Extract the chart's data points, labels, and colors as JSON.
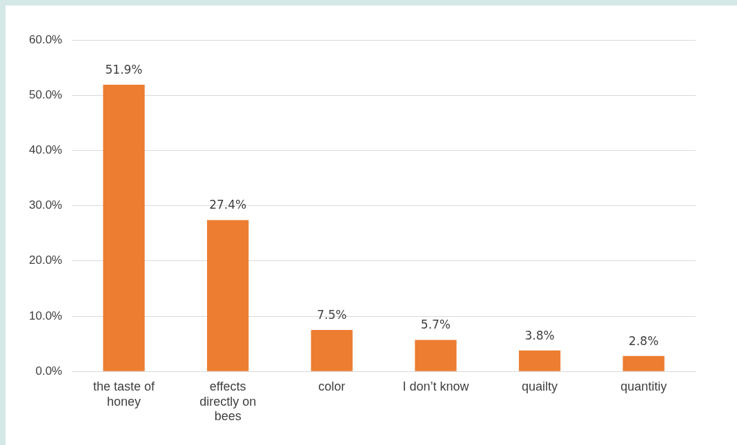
{
  "chart_data": {
    "type": "bar",
    "categories": [
      "the taste of honey",
      "effects directly on bees",
      "color",
      "I don’t know",
      "quailty",
      "quantitiy"
    ],
    "values": [
      51.9,
      27.4,
      7.5,
      5.7,
      3.8,
      2.8
    ],
    "value_labels": [
      "51.9%",
      "27.4%",
      "7.5%",
      "5.7%",
      "3.8%",
      "2.8%"
    ],
    "color": "#ed7d31",
    "ylim": [
      0,
      60
    ],
    "yticks": [
      {
        "value": 0,
        "label": "0.0%"
      },
      {
        "value": 10,
        "label": "10.0%"
      },
      {
        "value": 20,
        "label": "20.0%"
      },
      {
        "value": 30,
        "label": "30.0%"
      },
      {
        "value": 40,
        "label": "40.0%"
      },
      {
        "value": 50,
        "label": "50.0%"
      },
      {
        "value": 60,
        "label": "60.0%"
      }
    ],
    "grid": "y",
    "legend": false
  }
}
